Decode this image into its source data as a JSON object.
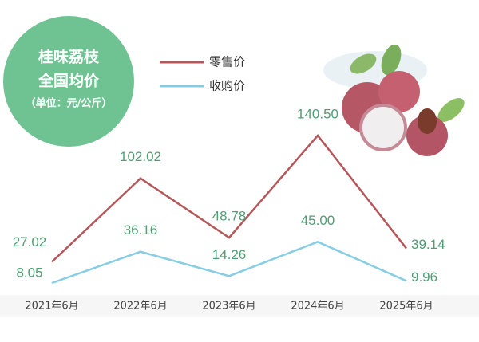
{
  "chart_data": {
    "type": "line",
    "title": "桂味荔枝",
    "subtitle": "全国均价",
    "unit": "（单位：元/公斤）",
    "categories": [
      "2021年6月",
      "2022年6月",
      "2023年6月",
      "2024年6月",
      "2025年6月"
    ],
    "series": [
      {
        "name": "零售价",
        "color": "#b5575a",
        "values": [
          27.02,
          102.02,
          48.78,
          140.5,
          39.14
        ],
        "value_labels": [
          "27.02",
          "102.02",
          "48.78",
          "140.50",
          "39.14"
        ]
      },
      {
        "name": "收购价",
        "color": "#86cde3",
        "values": [
          8.05,
          36.16,
          14.26,
          45,
          9.96
        ],
        "value_labels": [
          "8.05",
          "36.16",
          "14.26",
          "45.00",
          "9.96"
        ]
      }
    ]
  }
}
